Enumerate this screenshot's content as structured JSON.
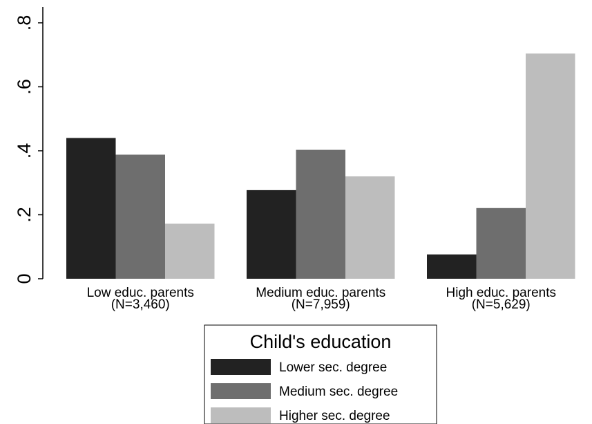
{
  "chart_data": {
    "type": "bar",
    "categories": [
      [
        "Low educ. parents",
        "(N=3,460)"
      ],
      [
        "Medium educ. parents",
        "(N=7,959)"
      ],
      [
        "High educ. parents",
        "(N=5,629)"
      ]
    ],
    "series": [
      {
        "name": "Lower sec. degree",
        "color": "#222222",
        "values": [
          0.44,
          0.277,
          0.076
        ]
      },
      {
        "name": "Medium sec. degree",
        "color": "#6e6e6e",
        "values": [
          0.388,
          0.403,
          0.221
        ]
      },
      {
        "name": "Higher sec. degree",
        "color": "#bdbdbd",
        "values": [
          0.172,
          0.32,
          0.704
        ]
      }
    ],
    "yticks": [
      0,
      0.2,
      0.4,
      0.6,
      0.8
    ],
    "ytick_labels": [
      "0",
      ".2",
      ".4",
      ".6",
      ".8"
    ],
    "ylim": [
      0,
      0.85
    ],
    "grid": false,
    "legend": {
      "title": "Child's education",
      "placement": "bottom-center"
    }
  }
}
